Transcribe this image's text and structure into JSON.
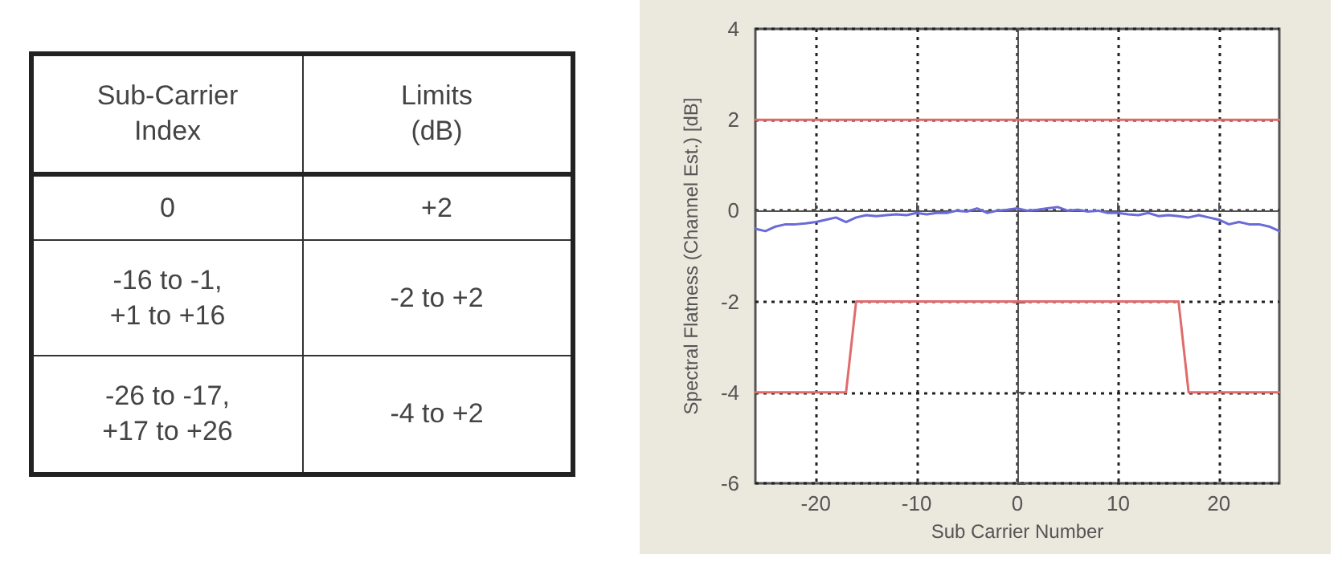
{
  "chart_data": [
    {
      "type": "other",
      "annotations": [
        "Sub-Carrier\nIndex",
        "Limits\n(dB)",
        "0",
        "+2",
        "-16 to -1,\n+1 to +16",
        "-2  to +2",
        "-26 to -17,\n+17 to +26",
        "-4 to +2"
      ]
    },
    {
      "type": "line",
      "xlabel": "Sub Carrier Number",
      "ylabel": "Spectral Flatness (Channel Est.) [dB]",
      "xlim": [
        -26,
        26
      ],
      "xticks": [
        -20,
        -10,
        0,
        10,
        20
      ],
      "ylim": [
        -6,
        4
      ],
      "yticks": [
        -6,
        -4,
        -2,
        0,
        2,
        4
      ],
      "grid": true,
      "marker": "none",
      "line_style": "solid",
      "series": [
        {
          "color": "#e06b6b",
          "x": [
            -26,
            26
          ],
          "values": [
            2,
            2
          ]
        },
        {
          "color": "#e06b6b",
          "x": [
            -26,
            -17,
            -16,
            16,
            17,
            26
          ],
          "values": [
            -4,
            -4,
            -2,
            -2,
            -4,
            -4
          ]
        },
        {
          "color": "#6a6ad8",
          "x": [
            -26,
            -25,
            -24,
            -23,
            -22,
            -21,
            -20,
            -19,
            -18,
            -17,
            -16,
            -15,
            -14,
            -13,
            -12,
            -11,
            -10,
            -9,
            -8,
            -7,
            -6,
            -5,
            -4,
            -3,
            -2,
            -1,
            0,
            1,
            2,
            3,
            4,
            5,
            6,
            7,
            8,
            9,
            10,
            11,
            12,
            13,
            14,
            15,
            16,
            17,
            18,
            19,
            20,
            21,
            22,
            23,
            24,
            25,
            26
          ],
          "values": [
            -0.4,
            -0.45,
            -0.35,
            -0.3,
            -0.3,
            -0.28,
            -0.25,
            -0.2,
            -0.15,
            -0.25,
            -0.15,
            -0.1,
            -0.12,
            -0.1,
            -0.08,
            -0.1,
            -0.05,
            -0.08,
            -0.05,
            -0.05,
            0,
            -0.02,
            0.05,
            -0.05,
            0,
            0.02,
            0.05,
            0,
            0.02,
            0.05,
            0.08,
            0,
            0.02,
            -0.02,
            0,
            -0.05,
            -0.05,
            -0.08,
            -0.1,
            -0.05,
            -0.12,
            -0.1,
            -0.12,
            -0.15,
            -0.1,
            -0.15,
            -0.2,
            -0.3,
            -0.25,
            -0.3,
            -0.3,
            -0.35,
            -0.45
          ]
        }
      ]
    }
  ]
}
